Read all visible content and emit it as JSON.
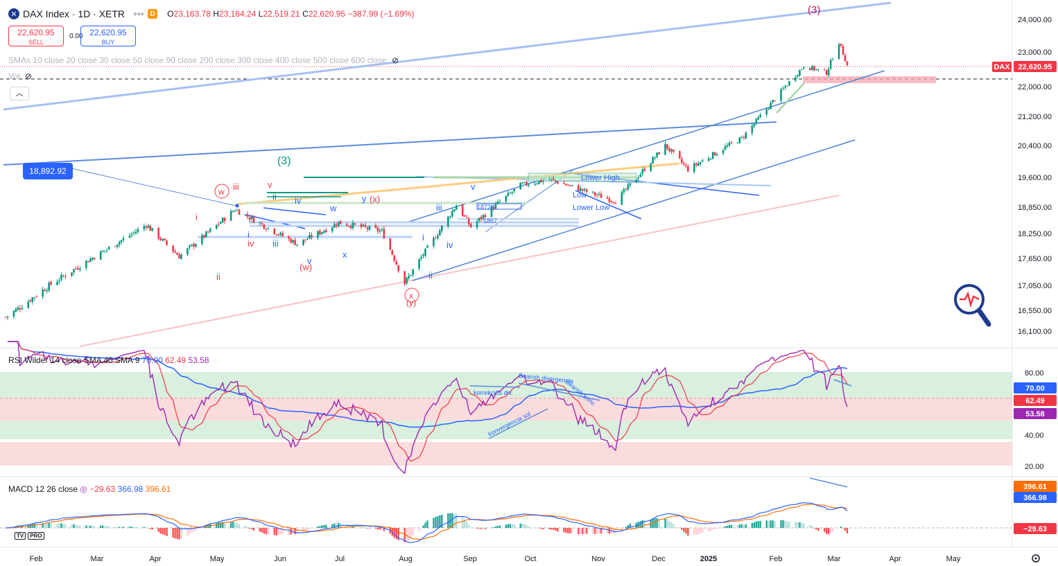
{
  "header": {
    "title": "DAX Index · 1D · XETR",
    "interval_badge": "D",
    "open_label": "O",
    "open": "23,163.78",
    "high_label": "H",
    "high": "23,164.24",
    "low_label": "L",
    "low": "22,519.21",
    "close_label": "C",
    "close": "22,620.95",
    "change": "−387.99 (−1.69%)"
  },
  "trade": {
    "sell_price": "22,620.95",
    "sell_label": "SELL",
    "spread": "0.00",
    "buy_price": "22,620.95",
    "buy_label": "BUY"
  },
  "legends": {
    "sma": "SMAs 10 close 20 close 30 close 50 close 90 close 200 close 300 close 400 close 500 close 600 close",
    "vol": "Vol",
    "rsi": {
      "name": "RSI Wilder 14 close SMA 40 SMA 9",
      "v1": "70.00",
      "v2": "62.49",
      "v3": "53.58"
    },
    "macd": {
      "name": "MACD 12 26 close",
      "v1": "−29.63",
      "v2": "366.98",
      "v3": "396.61"
    }
  },
  "colors": {
    "up": "#089981",
    "down": "#f23645",
    "accent": "#2962ff",
    "rsi_line": "#9c27b0",
    "macd_line": "#2962ff",
    "signal_line": "#ff6d00"
  },
  "icons": [
    "dax-logo-icon",
    "eye-hidden-icon",
    "chevron-up-icon",
    "settings-icon",
    "magnifier-pulse-icon"
  ],
  "tv_logo": "TV",
  "tv_pro": "PRO",
  "chart_data": [
    {
      "type": "candlestick",
      "title": "DAX Index · 1D · XETR",
      "y_ticks": [
        16100,
        16550,
        17050,
        17650,
        18250,
        18850,
        19600,
        20400,
        21200,
        22000,
        23000,
        24000
      ],
      "y_tick_labels": [
        "16,100.00",
        "16,550.00",
        "17,050.00",
        "17,650.00",
        "18,250.00",
        "18,850.00",
        "19,600.00",
        "20,400.00",
        "21,200.00",
        "22,000.00",
        "23,000.00",
        "24,000.00"
      ],
      "x_tick_labels": [
        "Feb",
        "Mar",
        "Apr",
        "May",
        "Jun",
        "Jul",
        "Aug",
        "Sep",
        "Oct",
        "Nov",
        "Dec",
        "2025",
        "Feb",
        "Mar",
        "Apr",
        "May"
      ],
      "last_price": "22,620.95",
      "last_label": "DAX",
      "callout": "18,892.92",
      "approx_close_path": [
        [
          "2024-01-25",
          16400
        ],
        [
          "2024-02-15",
          17050
        ],
        [
          "2024-03-15",
          17900
        ],
        [
          "2024-04-02",
          18450
        ],
        [
          "2024-04-18",
          17700
        ],
        [
          "2024-05-15",
          18800
        ],
        [
          "2024-06-14",
          18000
        ],
        [
          "2024-07-04",
          18500
        ],
        [
          "2024-07-25",
          18300
        ],
        [
          "2024-08-05",
          17100
        ],
        [
          "2024-08-30",
          18900
        ],
        [
          "2024-09-06",
          18400
        ],
        [
          "2024-09-30",
          19400
        ],
        [
          "2024-10-14",
          19550
        ],
        [
          "2024-11-15",
          19000
        ],
        [
          "2024-12-09",
          20400
        ],
        [
          "2024-12-20",
          19800
        ],
        [
          "2025-01-15",
          20600
        ],
        [
          "2025-02-14",
          22600
        ],
        [
          "2025-02-25",
          22400
        ],
        [
          "2025-03-03",
          23300
        ],
        [
          "2025-03-07",
          22620
        ]
      ],
      "annotations": [
        "(3)",
        "(3)",
        "i",
        "ii",
        "iii",
        "iv",
        "v",
        "i",
        "ii",
        "iii",
        "iv",
        "v",
        "w",
        "x",
        "y",
        "(w)",
        "(x)",
        "(y)",
        "x",
        "Lower High",
        "Low",
        "Lower Low",
        "18728",
        "1867"
      ]
    },
    {
      "type": "line",
      "title": "RSI Wilder 14 close SMA 40 SMA 9",
      "y_ticks": [
        20,
        40,
        80
      ],
      "y_tick_labels": [
        "20.00",
        "40.00",
        "80.00"
      ],
      "series": [
        {
          "name": "RSI",
          "last": 53.58
        },
        {
          "name": "SMA 40",
          "last": 70.0
        },
        {
          "name": "SMA 9",
          "last": 62.49
        }
      ],
      "annotations": [
        "korrekciós div.",
        "Bearish divergencia",
        "Bearish konv.",
        "konvergencia sol"
      ]
    },
    {
      "type": "bar",
      "title": "MACD 12 26 close",
      "series": [
        {
          "name": "Histogram",
          "last": -29.63
        },
        {
          "name": "MACD",
          "last": 366.98
        },
        {
          "name": "Signal",
          "last": 396.61
        }
      ]
    }
  ]
}
